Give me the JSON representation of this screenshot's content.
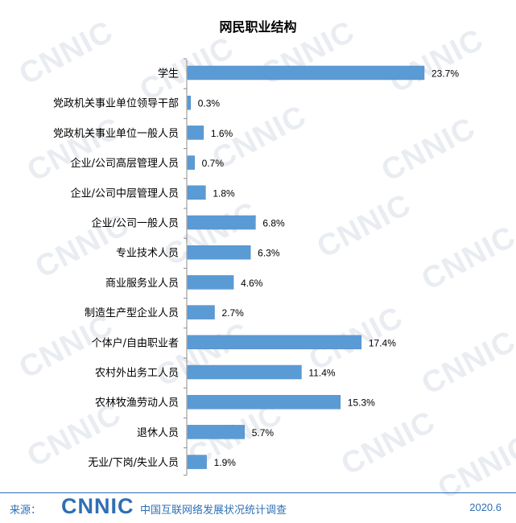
{
  "chart_data": {
    "type": "bar",
    "orientation": "horizontal",
    "title": "网民职业结构",
    "categories": [
      "学生",
      "党政机关事业单位领导干部",
      "党政机关事业单位一般人员",
      "企业/公司高层管理人员",
      "企业/公司中层管理人员",
      "企业/公司一般人员",
      "专业技术人员",
      "商业服务业人员",
      "制造生产型企业人员",
      "个体户/自由职业者",
      "农村外出务工人员",
      "农林牧渔劳动人员",
      "退休人员",
      "无业/下岗/失业人员"
    ],
    "values": [
      23.7,
      0.3,
      1.6,
      0.7,
      1.8,
      6.8,
      6.3,
      4.6,
      2.7,
      17.4,
      11.4,
      15.3,
      5.7,
      1.9
    ],
    "value_labels": [
      "23.7%",
      "0.3%",
      "1.6%",
      "0.7%",
      "1.8%",
      "6.8%",
      "6.3%",
      "4.6%",
      "2.7%",
      "17.4%",
      "11.4%",
      "15.3%",
      "5.7%",
      "1.9%"
    ],
    "xlim": [
      0,
      23.7
    ],
    "grid": false,
    "bar_color": "#5b9bd5"
  },
  "watermark": "CNNIC",
  "footer": {
    "source_label": "来源：",
    "logo": "CNNIC",
    "source_name": "中国互联网络发展状况统计调查",
    "date": "2020.6"
  }
}
